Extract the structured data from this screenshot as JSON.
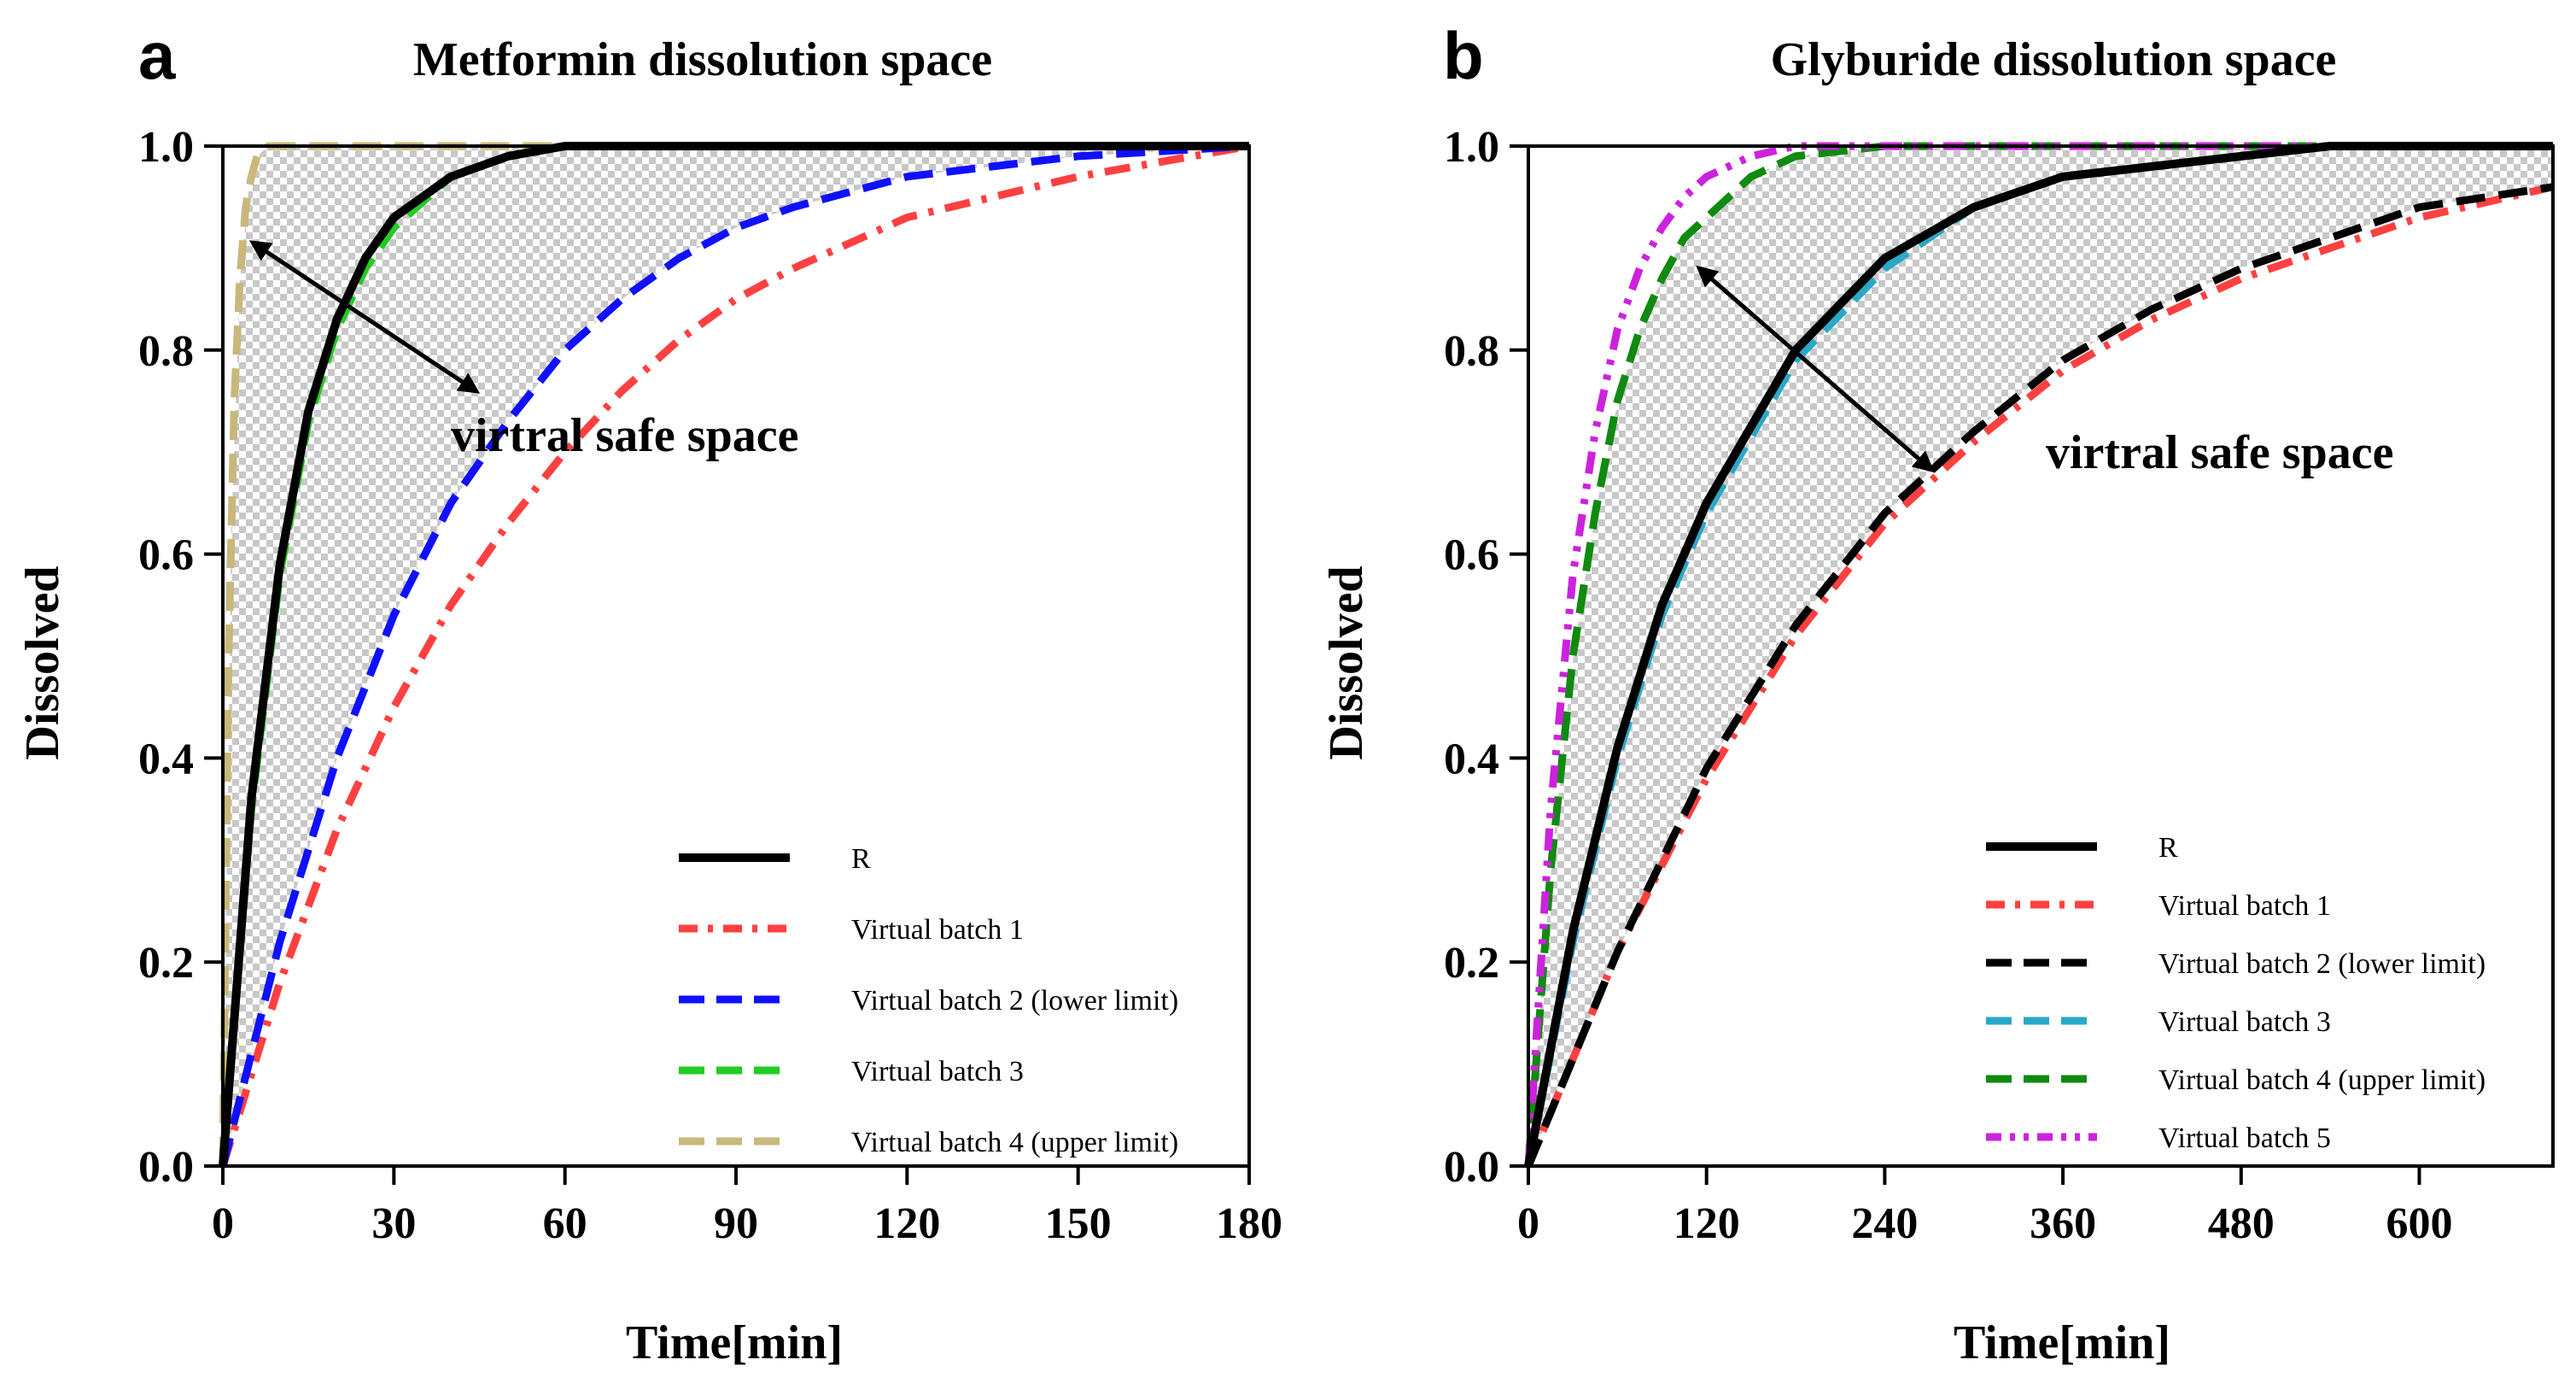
{
  "chart_data": [
    {
      "panel": "a",
      "type": "line",
      "title": "Metformin dissolution space",
      "xlabel": "Time[min]",
      "ylabel": "Dissolved",
      "xlim": [
        0,
        180
      ],
      "ylim": [
        0,
        1.0
      ],
      "xticks": [
        "0",
        "30",
        "60",
        "90",
        "120",
        "150",
        "180"
      ],
      "yticks": [
        "0.0",
        "0.2",
        "0.4",
        "0.6",
        "0.8",
        "1.0"
      ],
      "annotation": "virtral safe space",
      "legend_position": "bottom-right",
      "shaded_region": "between upper limit and lower limit (checkered)",
      "series": [
        {
          "name": "R",
          "color": "#000000",
          "style": "solid",
          "x": [
            0,
            5,
            10,
            15,
            20,
            25,
            30,
            40,
            50,
            60,
            90,
            120,
            180
          ],
          "y": [
            0,
            0.36,
            0.59,
            0.74,
            0.83,
            0.89,
            0.93,
            0.97,
            0.99,
            1.0,
            1.0,
            1.0,
            1.0
          ]
        },
        {
          "name": "Virtual batch 1",
          "color": "#ff4040",
          "style": "dashdot",
          "x": [
            0,
            10,
            20,
            30,
            40,
            50,
            60,
            70,
            80,
            90,
            100,
            120,
            150,
            180
          ],
          "y": [
            0,
            0.18,
            0.33,
            0.45,
            0.55,
            0.63,
            0.7,
            0.76,
            0.81,
            0.85,
            0.88,
            0.93,
            0.97,
            1.0
          ]
        },
        {
          "name": "Virtual batch 2 (lower limit)",
          "color": "#1010ff",
          "style": "dash",
          "x": [
            0,
            10,
            20,
            30,
            40,
            50,
            60,
            70,
            80,
            90,
            100,
            120,
            150,
            180
          ],
          "y": [
            0,
            0.22,
            0.4,
            0.54,
            0.65,
            0.73,
            0.8,
            0.85,
            0.89,
            0.92,
            0.94,
            0.97,
            0.99,
            1.0
          ]
        },
        {
          "name": "Virtual batch 3",
          "color": "#22cc22",
          "style": "dash",
          "x": [
            0,
            5,
            10,
            15,
            20,
            25,
            30,
            40,
            50,
            60,
            90,
            120,
            180
          ],
          "y": [
            0,
            0.35,
            0.58,
            0.73,
            0.82,
            0.88,
            0.92,
            0.97,
            0.99,
            1.0,
            1.0,
            1.0,
            1.0
          ]
        },
        {
          "name": "Virtual batch 4 (upper limit)",
          "color": "#c8b87a",
          "style": "dash",
          "x": [
            0,
            1,
            2,
            3,
            4,
            5,
            6,
            8,
            10,
            15,
            30,
            60,
            180
          ],
          "y": [
            0,
            0.5,
            0.75,
            0.87,
            0.94,
            0.97,
            0.99,
            1.0,
            1.0,
            1.0,
            1.0,
            1.0,
            1.0
          ]
        }
      ]
    },
    {
      "panel": "b",
      "type": "line",
      "title": "Glyburide dissolution space",
      "xlabel": "Time[min]",
      "ylabel": "Dissolved",
      "xlim": [
        0,
        690
      ],
      "ylim": [
        0,
        1.0
      ],
      "xticks": [
        "0",
        "120",
        "240",
        "360",
        "480",
        "600"
      ],
      "yticks": [
        "0.0",
        "0.2",
        "0.4",
        "0.6",
        "0.8",
        "1.0"
      ],
      "annotation": "virtral safe space",
      "legend_position": "bottom-right",
      "shaded_region": "between upper limit and lower limit (checkered)",
      "series": [
        {
          "name": "R",
          "color": "#000000",
          "style": "solid",
          "x": [
            0,
            30,
            60,
            90,
            120,
            180,
            240,
            300,
            360,
            420,
            480,
            540,
            600,
            690
          ],
          "y": [
            0,
            0.23,
            0.41,
            0.55,
            0.65,
            0.8,
            0.89,
            0.94,
            0.97,
            0.98,
            0.99,
            1.0,
            1.0,
            1.0
          ]
        },
        {
          "name": "Virtual batch 1",
          "color": "#ff4040",
          "style": "dashdot",
          "x": [
            0,
            60,
            120,
            180,
            240,
            300,
            360,
            420,
            480,
            540,
            600,
            690
          ],
          "y": [
            0,
            0.21,
            0.38,
            0.52,
            0.63,
            0.71,
            0.78,
            0.83,
            0.87,
            0.9,
            0.93,
            0.96
          ]
        },
        {
          "name": "Virtual batch 2 (lower limit)",
          "color": "#000000",
          "style": "dash",
          "x": [
            0,
            60,
            120,
            180,
            240,
            300,
            360,
            420,
            480,
            540,
            600,
            690
          ],
          "y": [
            0,
            0.21,
            0.39,
            0.53,
            0.64,
            0.72,
            0.79,
            0.84,
            0.88,
            0.91,
            0.94,
            0.96
          ]
        },
        {
          "name": "Virtual batch 3",
          "color": "#2aa8c8",
          "style": "dash",
          "x": [
            0,
            30,
            60,
            90,
            120,
            180,
            240,
            300,
            360,
            420,
            480,
            540,
            600,
            690
          ],
          "y": [
            0,
            0.22,
            0.4,
            0.54,
            0.64,
            0.79,
            0.88,
            0.94,
            0.97,
            0.98,
            0.99,
            1.0,
            1.0,
            1.0
          ]
        },
        {
          "name": "Virtual batch 4 (upper limit)",
          "color": "#108a10",
          "style": "dash",
          "x": [
            0,
            15,
            30,
            45,
            60,
            75,
            90,
            105,
            120,
            150,
            180,
            240,
            690
          ],
          "y": [
            0,
            0.29,
            0.5,
            0.64,
            0.75,
            0.82,
            0.87,
            0.91,
            0.93,
            0.97,
            0.99,
            1.0,
            1.0
          ]
        },
        {
          "name": "Virtual batch 5",
          "color": "#cc22dd",
          "style": "dashdotdot",
          "x": [
            0,
            15,
            30,
            45,
            60,
            75,
            90,
            105,
            120,
            150,
            180,
            240,
            690
          ],
          "y": [
            0,
            0.35,
            0.58,
            0.72,
            0.82,
            0.88,
            0.92,
            0.95,
            0.97,
            0.99,
            1.0,
            1.0,
            1.0
          ]
        }
      ]
    }
  ],
  "panel_letters": [
    "a",
    "b"
  ]
}
